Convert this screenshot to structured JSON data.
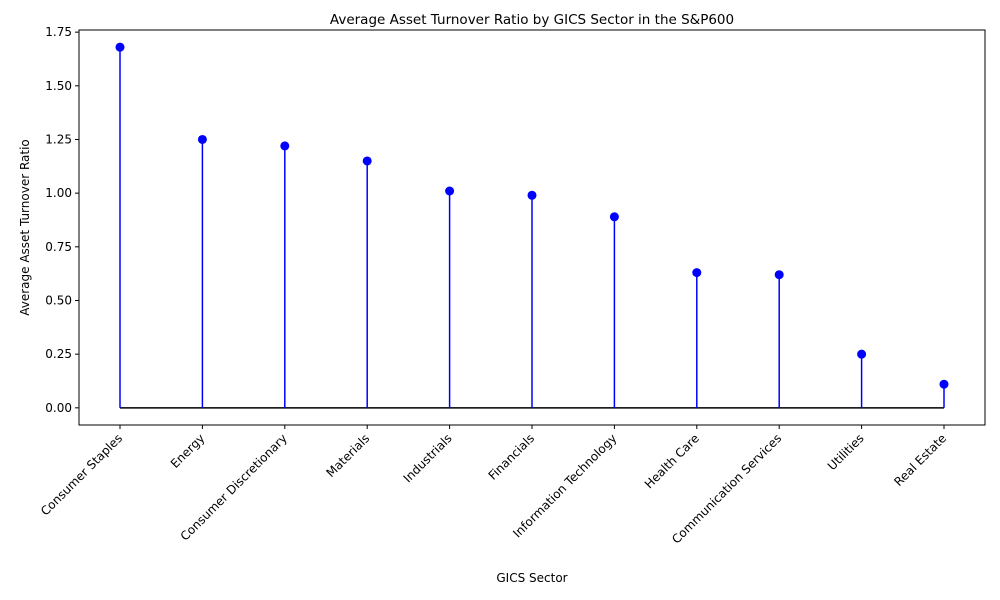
{
  "chart_data": {
    "type": "lollipop",
    "title": "Average Asset Turnover Ratio by GICS Sector in the S&P600",
    "xlabel": "GICS Sector",
    "ylabel": "Average Asset Turnover Ratio",
    "categories": [
      "Consumer Staples",
      "Energy",
      "Consumer Discretionary",
      "Materials",
      "Industrials",
      "Financials",
      "Information Technology",
      "Health Care",
      "Communication Services",
      "Utilities",
      "Real Estate"
    ],
    "values": [
      1.68,
      1.25,
      1.22,
      1.15,
      1.01,
      0.99,
      0.89,
      0.63,
      0.62,
      0.25,
      0.11
    ],
    "ylim": [
      -0.08,
      1.76
    ],
    "yticks": [
      0.0,
      0.25,
      0.5,
      0.75,
      1.0,
      1.25,
      1.5,
      1.75
    ],
    "ytick_labels": [
      "0.00",
      "0.25",
      "0.50",
      "0.75",
      "1.00",
      "1.25",
      "1.50",
      "1.75"
    ],
    "grid": false,
    "colors": {
      "stem": "#0000ff",
      "marker": "#0000ff",
      "baseline": "#000000"
    }
  }
}
